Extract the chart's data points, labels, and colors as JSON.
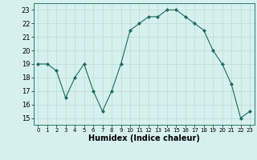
{
  "x": [
    0,
    1,
    2,
    3,
    4,
    5,
    6,
    7,
    8,
    9,
    10,
    11,
    12,
    13,
    14,
    15,
    16,
    17,
    18,
    19,
    20,
    21,
    22,
    23
  ],
  "y": [
    19.0,
    19.0,
    18.5,
    16.5,
    18.0,
    19.0,
    17.0,
    15.5,
    17.0,
    19.0,
    21.5,
    22.0,
    22.5,
    22.5,
    23.0,
    23.0,
    22.5,
    22.0,
    21.5,
    20.0,
    19.0,
    17.5,
    15.0,
    15.5
  ],
  "line_color": "#1a6b5a",
  "marker": "D",
  "marker_size": 2.0,
  "bg_color": "#d6f0ef",
  "grid_color": "#b8dbd9",
  "xlabel": "Humidex (Indice chaleur)",
  "xlabel_fontsize": 7,
  "ylabel_ticks": [
    15,
    16,
    17,
    18,
    19,
    20,
    21,
    22,
    23
  ],
  "xlim": [
    -0.5,
    23.5
  ],
  "ylim": [
    14.5,
    23.5
  ],
  "xtick_labels": [
    "0",
    "1",
    "2",
    "3",
    "4",
    "5",
    "6",
    "7",
    "8",
    "9",
    "10",
    "11",
    "12",
    "13",
    "14",
    "15",
    "16",
    "17",
    "18",
    "19",
    "20",
    "21",
    "22",
    "23"
  ]
}
